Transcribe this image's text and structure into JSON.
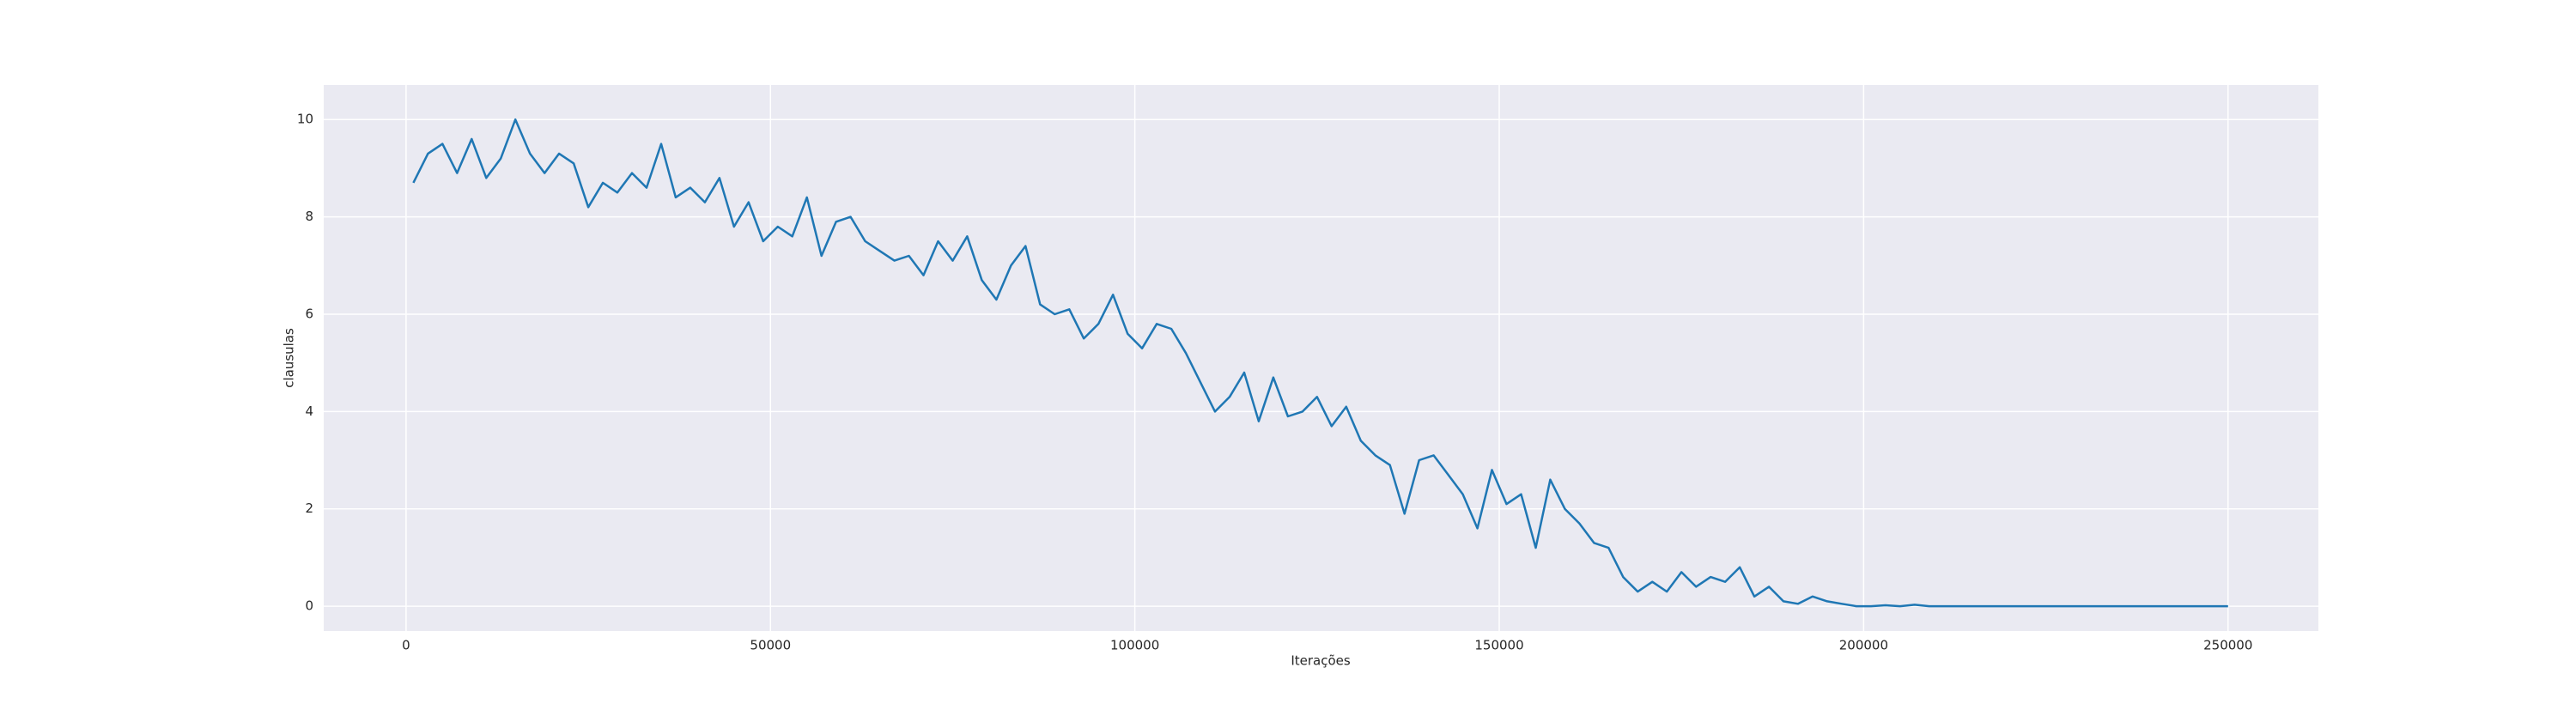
{
  "chart_data": {
    "type": "line",
    "x_label": "Iterações",
    "y_label": "clausulas",
    "xlim": [
      -11300,
      262400
    ],
    "ylim": [
      -0.51,
      10.71
    ],
    "xticks": [
      0,
      50000,
      100000,
      150000,
      200000,
      250000
    ],
    "yticks": [
      0,
      2,
      4,
      6,
      8,
      10
    ],
    "grid": true,
    "series": [
      {
        "color": "#1f77b4",
        "x": [
          1000,
          3000,
          5000,
          7000,
          9000,
          11000,
          13000,
          15000,
          17000,
          19000,
          21000,
          23000,
          25000,
          27000,
          29000,
          31000,
          33000,
          35000,
          37000,
          39000,
          41000,
          43000,
          45000,
          47000,
          49000,
          51000,
          53000,
          55000,
          57000,
          59000,
          61000,
          63000,
          65000,
          67000,
          69000,
          71000,
          73000,
          75000,
          77000,
          79000,
          81000,
          83000,
          85000,
          87000,
          89000,
          91000,
          93000,
          95000,
          97000,
          99000,
          101000,
          103000,
          105000,
          107000,
          109000,
          111000,
          113000,
          115000,
          117000,
          119000,
          121000,
          123000,
          125000,
          127000,
          129000,
          131000,
          133000,
          135000,
          137000,
          139000,
          141000,
          143000,
          145000,
          147000,
          149000,
          151000,
          153000,
          155000,
          157000,
          159000,
          161000,
          163000,
          165000,
          167000,
          169000,
          171000,
          173000,
          175000,
          177000,
          179000,
          181000,
          183000,
          185000,
          187000,
          189000,
          191000,
          193000,
          195000,
          197000,
          199000,
          201000,
          203000,
          205000,
          207000,
          209000,
          250000
        ],
        "values": [
          8.7,
          9.3,
          9.5,
          8.9,
          9.6,
          8.8,
          9.2,
          10.0,
          9.3,
          8.9,
          9.3,
          9.1,
          8.2,
          8.7,
          8.5,
          8.9,
          8.6,
          9.5,
          8.4,
          8.6,
          8.3,
          8.8,
          7.8,
          8.3,
          7.5,
          7.8,
          7.6,
          8.4,
          7.2,
          7.9,
          8.0,
          7.5,
          7.3,
          7.1,
          7.2,
          6.8,
          7.5,
          7.1,
          7.6,
          6.7,
          6.3,
          7.0,
          7.4,
          6.2,
          6.0,
          6.1,
          5.5,
          5.8,
          6.4,
          5.6,
          5.3,
          5.8,
          5.7,
          5.2,
          4.6,
          4.0,
          4.3,
          4.8,
          3.8,
          4.7,
          3.9,
          4.0,
          4.3,
          3.7,
          4.1,
          3.4,
          3.1,
          2.9,
          1.9,
          3.0,
          3.1,
          2.7,
          2.3,
          1.6,
          2.8,
          2.1,
          2.3,
          1.2,
          2.6,
          2.0,
          1.7,
          1.3,
          1.2,
          0.6,
          0.3,
          0.5,
          0.3,
          0.7,
          0.4,
          0.6,
          0.5,
          0.8,
          0.2,
          0.4,
          0.1,
          0.05,
          0.2,
          0.1,
          0.05,
          0.0,
          0.0,
          0.02,
          0.0,
          0.03,
          0.0,
          0.0
        ]
      }
    ]
  }
}
